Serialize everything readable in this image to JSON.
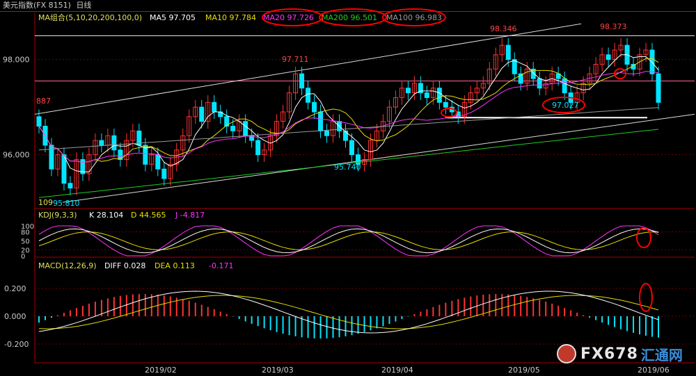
{
  "window": {
    "title": "美元指数(FX 8151)",
    "period": "日线"
  },
  "panels": {
    "main": {
      "indicator_label": "MA组合(5,10,20,200,100,0)",
      "ma": [
        {
          "name": "MA5",
          "value": "97.705",
          "color": "#ffffff"
        },
        {
          "name": "MA10",
          "value": "97.784",
          "color": "#e8e000"
        },
        {
          "name": "MA20",
          "value": "97.726",
          "color": "#ff33ff"
        },
        {
          "name": "MA200",
          "value": "96.501",
          "color": "#22cc22"
        },
        {
          "name": "MA100",
          "value": "96.983",
          "color": "#9a9a9a"
        }
      ],
      "price_labels": [
        "98.000",
        "96.000"
      ],
      "annotations": {
        "high_feb": "97.711",
        "high_apr": "98.346",
        "high_may": "98.373",
        "low_mar": "95.740",
        "low_may": "97.027",
        "left_top": "887",
        "left_bottom": "95.810",
        "left_bottom_prefix": "109"
      }
    },
    "kdj": {
      "label": "KDJ(9,3,3)",
      "K": "K 28.104",
      "D": "D 44.565",
      "J": "J -4.817",
      "axis": [
        "100",
        "80",
        "50",
        "20",
        "0"
      ]
    },
    "macd": {
      "label": "MACD(12,26,9)",
      "DIFF": "DIFF 0.028",
      "DEA": "DEA 0.113",
      "MACD": "-0.171",
      "axis": [
        "0.200",
        "0.000",
        "-0.200"
      ]
    }
  },
  "x_axis": [
    "2019/02",
    "2019/03",
    "2019/04",
    "2019/05",
    "2019/06"
  ],
  "colors": {
    "up": "#ff3333",
    "down": "#00e5ff",
    "annotation_circle": "#ff0000"
  },
  "watermark": {
    "text": "FX678",
    "cn": "汇通网"
  },
  "chart_data": {
    "type": "candlestick",
    "title": "美元指数(FX 8151) 日线",
    "y_range_main": [
      94.9,
      98.9
    ],
    "x_ticks": [
      "2019/02",
      "2019/03",
      "2019/04",
      "2019/05",
      "2019/06"
    ],
    "close_series": [
      96.6,
      96.2,
      95.7,
      96.0,
      95.4,
      95.3,
      95.9,
      95.6,
      96.0,
      96.3,
      96.2,
      96.4,
      96.1,
      95.9,
      96.3,
      96.5,
      96.2,
      95.8,
      96.0,
      95.7,
      95.5,
      95.8,
      96.1,
      96.4,
      96.8,
      97.0,
      96.7,
      97.1,
      96.9,
      96.8,
      96.6,
      96.5,
      96.7,
      96.4,
      96.3,
      96.0,
      96.1,
      96.4,
      96.7,
      96.9,
      97.3,
      97.7,
      97.4,
      97.1,
      96.9,
      96.5,
      96.4,
      96.7,
      96.5,
      96.3,
      96.0,
      95.8,
      95.9,
      96.3,
      96.5,
      96.7,
      97.0,
      97.2,
      97.4,
      97.3,
      97.5,
      97.3,
      97.2,
      97.4,
      97.1,
      97.0,
      96.9,
      96.8,
      97.1,
      97.3,
      97.4,
      97.5,
      97.8,
      98.1,
      98.3,
      98.0,
      97.7,
      97.5,
      97.8,
      97.6,
      97.4,
      97.5,
      97.7,
      97.6,
      97.3,
      97.1,
      97.3,
      97.5,
      97.7,
      97.9,
      98.1,
      98.0,
      98.2,
      98.3,
      97.9,
      97.8,
      98.1,
      98.2,
      97.7,
      97.1
    ]
  }
}
